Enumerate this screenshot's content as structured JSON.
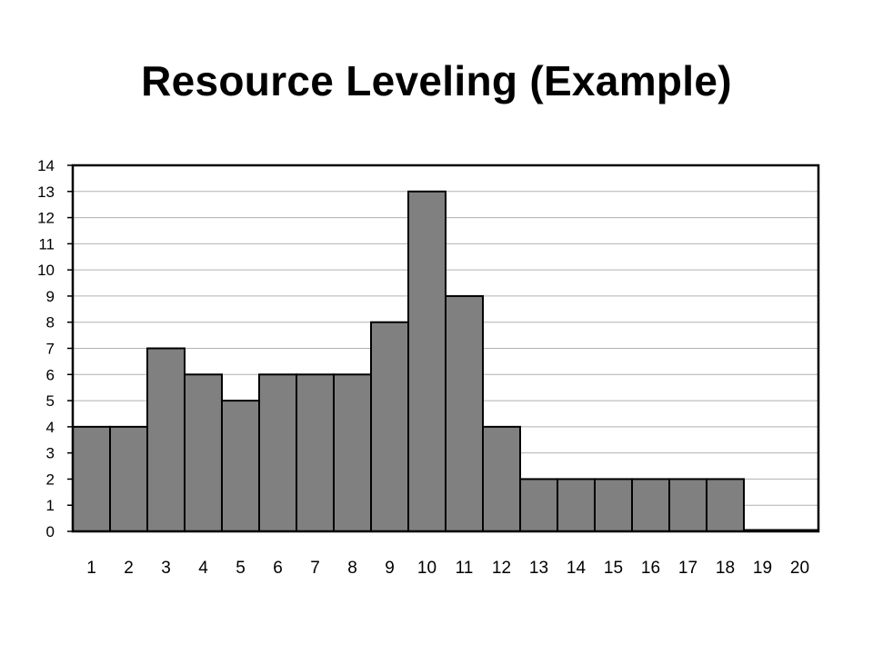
{
  "slide": {
    "title": "Resource Leveling (Example)"
  },
  "colors": {
    "bar_fill": "#808080",
    "bar_stroke": "#000000",
    "grid": "#b0b0b0",
    "axis": "#000000"
  },
  "chart_data": {
    "type": "bar",
    "title": "",
    "xlabel": "",
    "ylabel": "",
    "categories": [
      "1",
      "2",
      "3",
      "4",
      "5",
      "6",
      "7",
      "8",
      "9",
      "10",
      "11",
      "12",
      "13",
      "14",
      "15",
      "16",
      "17",
      "18",
      "19",
      "20"
    ],
    "values": [
      4,
      4,
      7,
      6,
      5,
      6,
      6,
      6,
      8,
      13,
      9,
      4,
      2,
      2,
      2,
      2,
      2,
      2,
      0,
      0
    ],
    "ylim": [
      0,
      14
    ],
    "yticks": [
      "0",
      "1",
      "2",
      "3",
      "4",
      "5",
      "6",
      "7",
      "8",
      "9",
      "10",
      "11",
      "12",
      "13",
      "14"
    ],
    "grid": true,
    "legend": "none"
  }
}
